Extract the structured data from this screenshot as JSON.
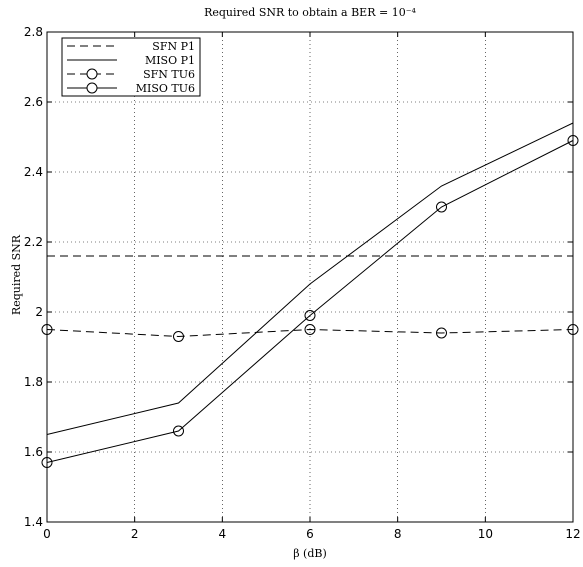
{
  "chart_data": {
    "type": "line",
    "title": "Required SNR to obtain a BER = 10⁻⁴",
    "xlabel": "β (dB)",
    "ylabel": "Required SNR",
    "xlim": [
      0,
      12
    ],
    "ylim": [
      1.4,
      2.8
    ],
    "x_ticks": [
      "0",
      "2",
      "4",
      "6",
      "8",
      "10",
      "12"
    ],
    "y_ticks": [
      "1.4",
      "1.6",
      "1.8",
      "2",
      "2.2",
      "2.4",
      "2.6",
      "2.8"
    ],
    "grid": true,
    "legend_position": "top-left",
    "x": [
      0,
      3,
      6,
      9,
      12
    ],
    "series": [
      {
        "name": "SFN P1",
        "style": "dashed",
        "marker": "none",
        "values": [
          2.16,
          2.16,
          2.16,
          2.16,
          2.16
        ]
      },
      {
        "name": "MISO P1",
        "style": "solid",
        "marker": "none",
        "values": [
          1.65,
          1.74,
          2.08,
          2.36,
          2.54
        ]
      },
      {
        "name": "SFN TU6",
        "style": "dashed",
        "marker": "circle",
        "values": [
          1.95,
          1.93,
          1.95,
          1.94,
          1.95
        ]
      },
      {
        "name": "MISO TU6",
        "style": "solid",
        "marker": "circle",
        "values": [
          1.57,
          1.66,
          1.99,
          2.3,
          2.49
        ]
      }
    ]
  }
}
